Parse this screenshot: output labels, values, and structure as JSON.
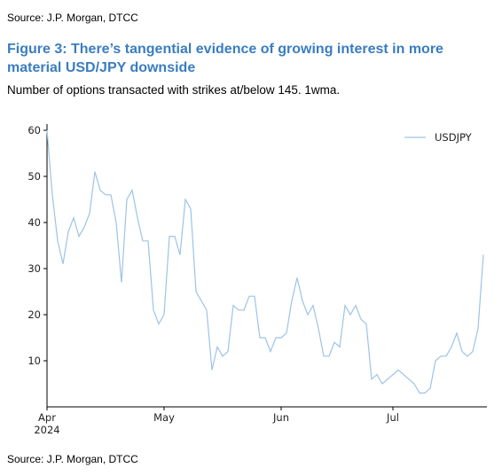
{
  "chart_data": {
    "type": "line",
    "source_top": "Source: J.P. Morgan, DTCC",
    "title": "Figure 3: There’s tangential evidence of growing interest in more material USD/JPY downside",
    "subtitle": "Number of options transacted with strikes at/below 145. 1wma.",
    "source": "Source: J.P. Morgan, DTCC",
    "categories": [
      "Apr",
      null,
      null,
      null,
      null,
      null,
      null,
      null,
      null,
      null,
      null,
      null,
      null,
      null,
      null,
      null,
      null,
      null,
      null,
      null,
      null,
      null,
      "May",
      null,
      null,
      null,
      null,
      null,
      null,
      null,
      null,
      null,
      null,
      null,
      null,
      null,
      null,
      null,
      null,
      null,
      null,
      null,
      null,
      null,
      "Jun",
      null,
      null,
      null,
      null,
      null,
      null,
      null,
      null,
      null,
      null,
      null,
      null,
      null,
      null,
      null,
      null,
      null,
      null,
      null,
      null,
      "Jul",
      null,
      null,
      null,
      null,
      null,
      null,
      null,
      null,
      null,
      null,
      null,
      null,
      null,
      null,
      null,
      null,
      null
    ],
    "x_year": "2024",
    "series": [
      {
        "name": "USDJPY",
        "color": "#9dc3e6",
        "values": [
          60,
          46,
          36,
          31,
          38,
          41,
          37,
          39,
          42,
          51,
          47,
          46,
          46,
          40,
          27,
          45,
          47,
          41,
          36,
          36,
          21,
          18,
          20,
          37,
          37,
          33,
          45,
          43,
          25,
          23,
          21,
          8,
          13,
          11,
          12,
          22,
          21,
          21,
          24,
          24,
          15,
          15,
          12,
          15,
          15,
          16,
          23,
          28,
          23,
          20,
          22,
          17,
          11,
          11,
          14,
          13,
          22,
          20,
          22,
          19,
          18,
          6,
          7,
          5,
          6,
          7,
          8,
          7,
          6,
          5,
          3,
          3,
          4,
          10,
          11,
          11,
          13,
          16,
          12,
          11,
          12,
          17,
          33
        ]
      }
    ],
    "ylim": [
      0,
      60
    ],
    "yticks": [
      10,
      20,
      30,
      40,
      50,
      60
    ],
    "legend": "upper right",
    "grid": false
  }
}
